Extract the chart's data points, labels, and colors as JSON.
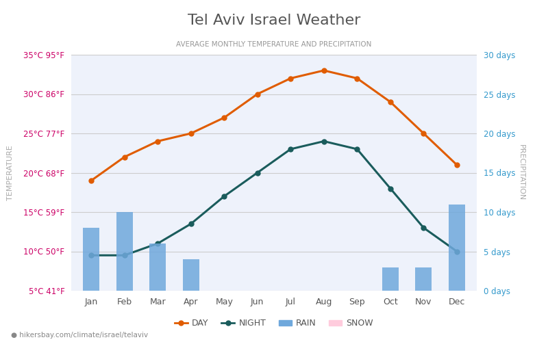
{
  "title": "Tel Aviv Israel Weather",
  "subtitle": "AVERAGE MONTHLY TEMPERATURE AND PRECIPITATION",
  "months": [
    "Jan",
    "Feb",
    "Mar",
    "Apr",
    "May",
    "Jun",
    "Jul",
    "Aug",
    "Sep",
    "Oct",
    "Nov",
    "Dec"
  ],
  "day_temps": [
    19,
    22,
    24,
    25,
    27,
    30,
    32,
    33,
    32,
    29,
    25,
    21
  ],
  "night_temps": [
    9.5,
    9.5,
    11,
    13.5,
    17,
    20,
    23,
    24,
    23,
    18,
    13,
    10
  ],
  "rain_days": [
    8,
    10,
    6,
    4,
    0,
    0,
    0,
    0,
    0,
    3,
    3,
    11
  ],
  "ylim_temp": [
    5,
    35
  ],
  "ylim_precip": [
    0,
    30
  ],
  "yticks_temp": [
    5,
    10,
    15,
    20,
    25,
    30,
    35
  ],
  "yticks_temp_labels": [
    "5°C 41°F",
    "10°C 50°F",
    "15°C 59°F",
    "20°C 68°F",
    "25°C 77°F",
    "30°C 86°F",
    "35°C 95°F"
  ],
  "yticks_precip": [
    0,
    5,
    10,
    15,
    20,
    25,
    30
  ],
  "yticks_precip_labels": [
    "0 days",
    "5 days",
    "10 days",
    "15 days",
    "20 days",
    "25 days",
    "30 days"
  ],
  "bg_color": "#ffffff",
  "plot_bg_color": "#eef2fb",
  "day_color": "#e05c00",
  "night_color": "#1a5c5c",
  "rain_color": "#6fa8dc",
  "snow_color": "#ffccdd",
  "title_color": "#555555",
  "subtitle_color": "#999999",
  "temp_label_color": "#cc0066",
  "precip_label_color": "#3399cc",
  "grid_color": "#cccccc",
  "footer_text": "hikersbay.com/climate/israel/telaviv",
  "footer_color": "#888888"
}
